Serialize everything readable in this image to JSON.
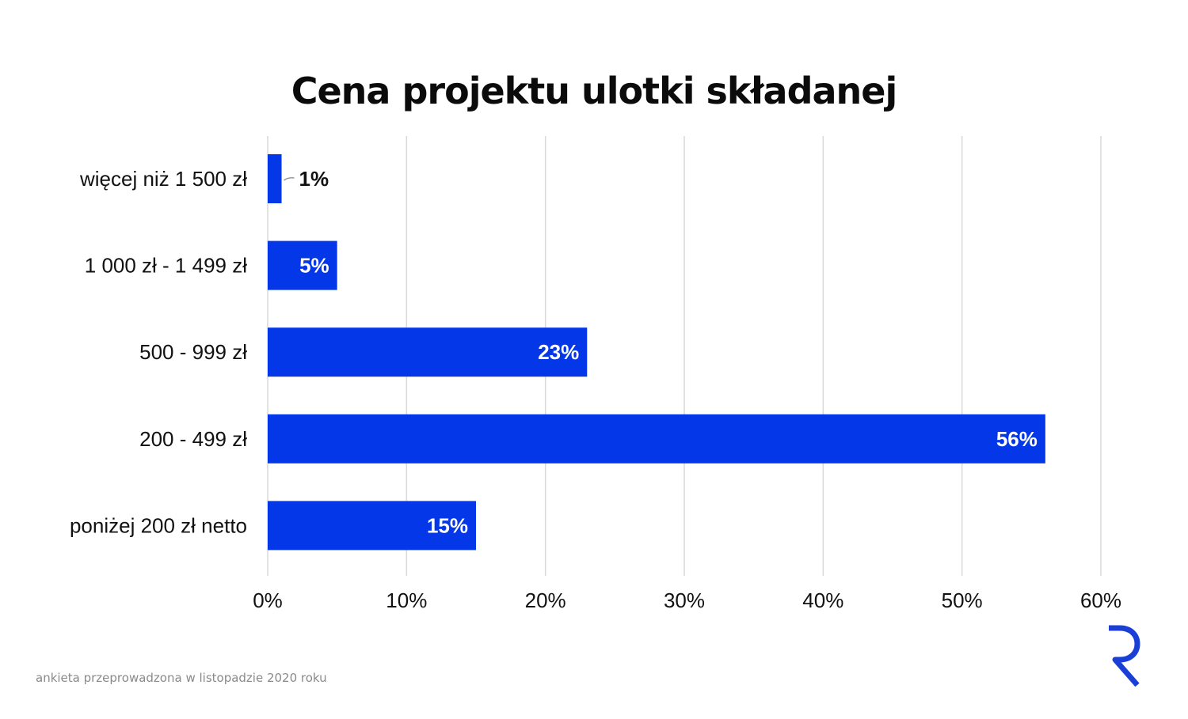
{
  "chart_data": {
    "type": "bar",
    "orientation": "horizontal",
    "title": "Cena projektu ulotki składanej",
    "categories": [
      "więcej niż 1 500 zł",
      "1 000 zł - 1 499 zł",
      "500 - 999 zł",
      "200 - 499 zł",
      "poniżej 200 zł netto"
    ],
    "values": [
      1,
      5,
      23,
      56,
      15
    ],
    "value_labels": [
      "1%",
      "5%",
      "23%",
      "56%",
      "15%"
    ],
    "xlim": [
      0,
      60
    ],
    "xticks": [
      0,
      10,
      20,
      30,
      40,
      50,
      60
    ],
    "xtick_labels": [
      "0%",
      "10%",
      "20%",
      "30%",
      "40%",
      "50%",
      "60%"
    ],
    "grid": "vertical",
    "bar_color": "#0437e8",
    "gridline_color": "#d9d9d9"
  },
  "footnote": "ankieta przeprowadzona w listopadzie 2020 roku",
  "logo": {
    "icon": "r-logo-icon",
    "color": "#1a3fd6"
  }
}
